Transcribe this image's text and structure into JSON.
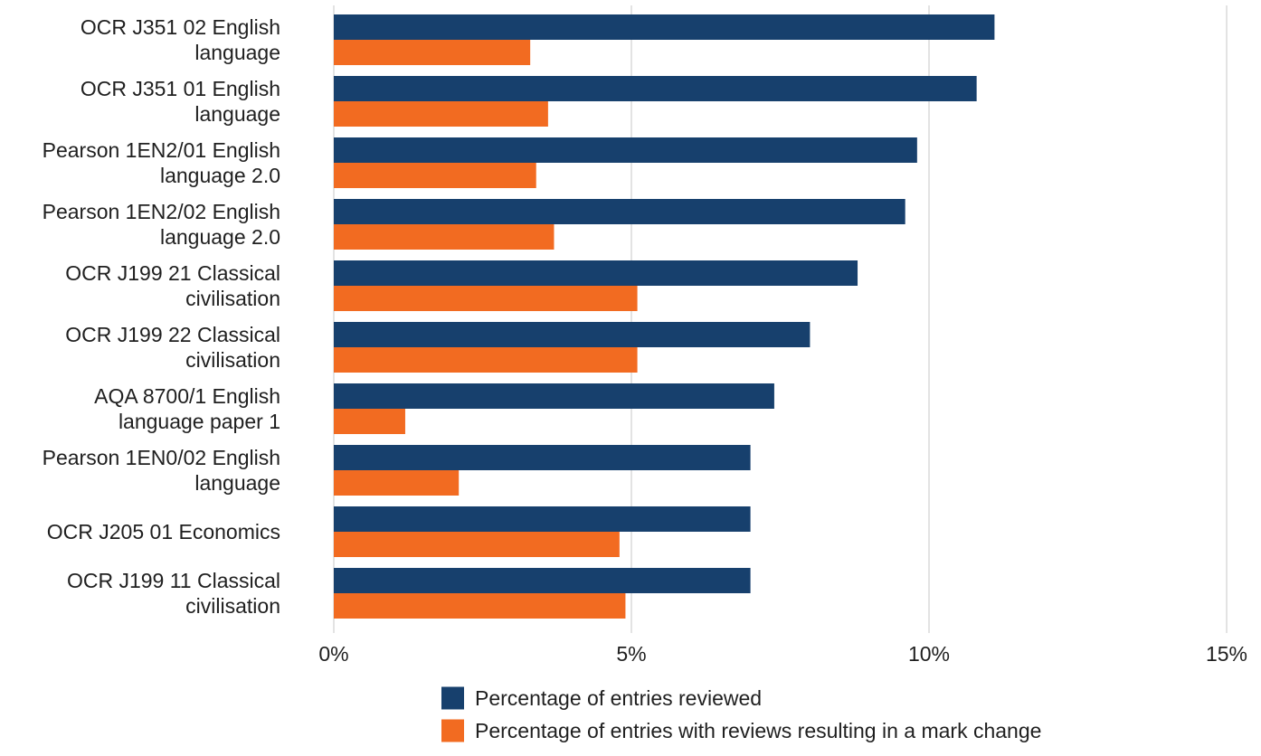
{
  "chart_data": {
    "type": "bar",
    "orientation": "horizontal",
    "categories": [
      [
        "OCR J351 02 English",
        "language"
      ],
      [
        "OCR J351 01 English",
        "language"
      ],
      [
        "Pearson 1EN2/01 English",
        "language 2.0"
      ],
      [
        "Pearson 1EN2/02 English",
        "language 2.0"
      ],
      [
        "OCR J199 21 Classical",
        "civilisation"
      ],
      [
        "OCR J199 22 Classical",
        "civilisation"
      ],
      [
        "AQA 8700/1 English",
        "language paper 1"
      ],
      [
        "Pearson 1EN0/02 English",
        "language"
      ],
      [
        "OCR J205 01 Economics"
      ],
      [
        "OCR J199 11 Classical",
        "civilisation"
      ]
    ],
    "series": [
      {
        "name": "Percentage of entries reviewed",
        "color": "#17406d",
        "values": [
          11.1,
          10.8,
          9.8,
          9.6,
          8.8,
          8.0,
          7.4,
          7.0,
          7.0,
          7.0
        ]
      },
      {
        "name": "Percentage of entries with reviews resulting in a mark change",
        "color": "#f26b21",
        "values": [
          3.3,
          3.6,
          3.4,
          3.7,
          5.1,
          5.1,
          1.2,
          2.1,
          4.8,
          4.9
        ]
      }
    ],
    "xlim": [
      0,
      15
    ],
    "xticks": [
      0,
      5,
      10,
      15
    ],
    "xtick_labels": [
      "0%",
      "5%",
      "10%",
      "15%"
    ],
    "grid": "vertical",
    "gridline_color": "#d0d0d0",
    "legend_position": "bottom"
  }
}
